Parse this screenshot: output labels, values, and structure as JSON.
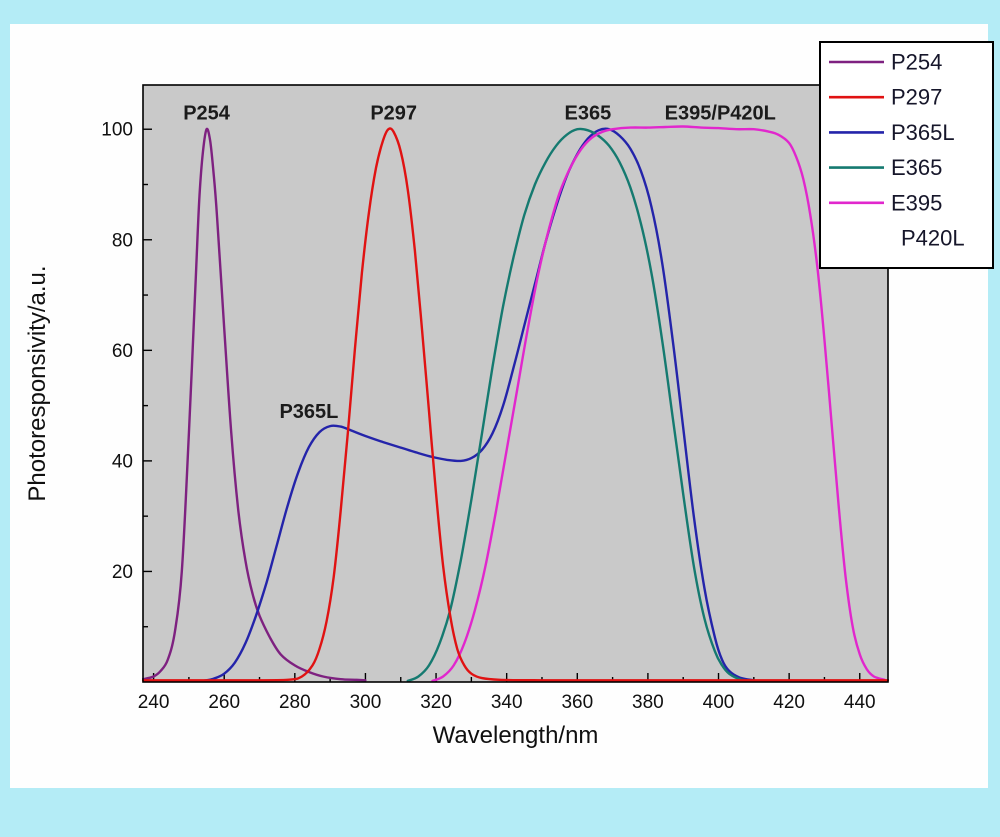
{
  "chart_data": {
    "type": "line",
    "title": "",
    "xlabel": "Wavelength/nm",
    "ylabel": "Photoresponsivity/a.u.",
    "x_range": [
      237,
      448
    ],
    "y_range": [
      0,
      108
    ],
    "x_ticks": [
      240,
      260,
      280,
      300,
      320,
      340,
      360,
      380,
      400,
      420,
      440
    ],
    "x_minor_ticks": [
      250,
      270,
      290,
      310,
      330,
      350,
      370,
      390,
      410,
      430
    ],
    "y_ticks": [
      20,
      40,
      60,
      80,
      100
    ],
    "y_minor_ticks": [
      10,
      30,
      50,
      70,
      90
    ],
    "grid": false,
    "plot_bg": "#c9c9c9",
    "frame_color": "#000000",
    "page_bg": "#b4ecf6",
    "panel_bg": "#fefefe",
    "series": [
      {
        "name": "P254",
        "color": "#7e2180",
        "points": [
          [
            237,
            0.5
          ],
          [
            240,
            1
          ],
          [
            242,
            2
          ],
          [
            244,
            4
          ],
          [
            246,
            9
          ],
          [
            248,
            20
          ],
          [
            250,
            45
          ],
          [
            252,
            74
          ],
          [
            253,
            88
          ],
          [
            254,
            96
          ],
          [
            255,
            100
          ],
          [
            256,
            98
          ],
          [
            257,
            92
          ],
          [
            258,
            84
          ],
          [
            260,
            64
          ],
          [
            262,
            45
          ],
          [
            264,
            31
          ],
          [
            266,
            22
          ],
          [
            268,
            16
          ],
          [
            270,
            12
          ],
          [
            273,
            8
          ],
          [
            276,
            5
          ],
          [
            280,
            3
          ],
          [
            284,
            1.8
          ],
          [
            288,
            1
          ],
          [
            293,
            0.5
          ],
          [
            297,
            0.4
          ],
          [
            300,
            0.3
          ]
        ]
      },
      {
        "name": "P297",
        "color": "#e01212",
        "points": [
          [
            237,
            0.3
          ],
          [
            252,
            0.3
          ],
          [
            266,
            0.3
          ],
          [
            278,
            0.4
          ],
          [
            282,
            1
          ],
          [
            285,
            3
          ],
          [
            287,
            6
          ],
          [
            289,
            11
          ],
          [
            291,
            19
          ],
          [
            293,
            31
          ],
          [
            295,
            45
          ],
          [
            297,
            60
          ],
          [
            299,
            74
          ],
          [
            301,
            85
          ],
          [
            303,
            93
          ],
          [
            305,
            98
          ],
          [
            306.5,
            100
          ],
          [
            308,
            99.5
          ],
          [
            310,
            96
          ],
          [
            312,
            89
          ],
          [
            314,
            78
          ],
          [
            316,
            64
          ],
          [
            318,
            49
          ],
          [
            320,
            34
          ],
          [
            322,
            21
          ],
          [
            324,
            12
          ],
          [
            326,
            6
          ],
          [
            328,
            3
          ],
          [
            330,
            1.5
          ],
          [
            333,
            0.7
          ],
          [
            338,
            0.4
          ],
          [
            350,
            0.3
          ],
          [
            370,
            0.3
          ],
          [
            390,
            0.3
          ],
          [
            410,
            0.3
          ],
          [
            430,
            0.3
          ],
          [
            448,
            0.3
          ]
        ]
      },
      {
        "name": "P365L",
        "color": "#2424aa",
        "points": [
          [
            254,
            0.2
          ],
          [
            257,
            0.6
          ],
          [
            260,
            1.5
          ],
          [
            263,
            3.5
          ],
          [
            266,
            7
          ],
          [
            269,
            12
          ],
          [
            272,
            18
          ],
          [
            275,
            25
          ],
          [
            278,
            32
          ],
          [
            281,
            38
          ],
          [
            284,
            42.5
          ],
          [
            287,
            45.2
          ],
          [
            290,
            46.3
          ],
          [
            293,
            46.2
          ],
          [
            296,
            45.5
          ],
          [
            300,
            44.5
          ],
          [
            305,
            43.4
          ],
          [
            310,
            42.4
          ],
          [
            315,
            41.4
          ],
          [
            319,
            40.7
          ],
          [
            323,
            40.2
          ],
          [
            327,
            40
          ],
          [
            330,
            40.5
          ],
          [
            333,
            42
          ],
          [
            336,
            45
          ],
          [
            339,
            50
          ],
          [
            342,
            57
          ],
          [
            345,
            64.5
          ],
          [
            348,
            72
          ],
          [
            351,
            79.5
          ],
          [
            354,
            86
          ],
          [
            357,
            91.5
          ],
          [
            360,
            95.5
          ],
          [
            363,
            98.3
          ],
          [
            366,
            99.8
          ],
          [
            369,
            100
          ],
          [
            372,
            98.8
          ],
          [
            375,
            96.5
          ],
          [
            378,
            92.5
          ],
          [
            381,
            86
          ],
          [
            384,
            76
          ],
          [
            387,
            62
          ],
          [
            390,
            46
          ],
          [
            393,
            30
          ],
          [
            396,
            17
          ],
          [
            399,
            8
          ],
          [
            401,
            4
          ],
          [
            403,
            2
          ],
          [
            406,
            0.8
          ],
          [
            410,
            0.3
          ]
        ]
      },
      {
        "name": "E365",
        "color": "#157a70",
        "points": [
          [
            312,
            0.2
          ],
          [
            315,
            1
          ],
          [
            318,
            3
          ],
          [
            321,
            7
          ],
          [
            324,
            13
          ],
          [
            327,
            22
          ],
          [
            330,
            33
          ],
          [
            333,
            45
          ],
          [
            336,
            57
          ],
          [
            339,
            68
          ],
          [
            342,
            77
          ],
          [
            345,
            84.5
          ],
          [
            348,
            90
          ],
          [
            351,
            94
          ],
          [
            354,
            97
          ],
          [
            357,
            99
          ],
          [
            360,
            100
          ],
          [
            363,
            99.8
          ],
          [
            366,
            98.8
          ],
          [
            369,
            97
          ],
          [
            372,
            94
          ],
          [
            375,
            89.5
          ],
          [
            378,
            83
          ],
          [
            381,
            74
          ],
          [
            384,
            62
          ],
          [
            387,
            48
          ],
          [
            390,
            34
          ],
          [
            393,
            21
          ],
          [
            396,
            11.5
          ],
          [
            399,
            5.5
          ],
          [
            401,
            3
          ],
          [
            403,
            1.5
          ],
          [
            406,
            0.5
          ],
          [
            409,
            0.2
          ]
        ]
      },
      {
        "name": "E395/P420L",
        "color": "#e127cd",
        "points": [
          [
            319,
            0.2
          ],
          [
            322,
            1
          ],
          [
            325,
            3
          ],
          [
            328,
            7
          ],
          [
            331,
            13
          ],
          [
            334,
            21
          ],
          [
            337,
            31
          ],
          [
            340,
            42
          ],
          [
            343,
            53
          ],
          [
            346,
            64
          ],
          [
            349,
            74
          ],
          [
            352,
            82
          ],
          [
            355,
            88.5
          ],
          [
            358,
            93
          ],
          [
            361,
            96.3
          ],
          [
            364,
            98.4
          ],
          [
            367,
            99.5
          ],
          [
            370,
            100
          ],
          [
            375,
            100.3
          ],
          [
            380,
            100.3
          ],
          [
            385,
            100.4
          ],
          [
            390,
            100.5
          ],
          [
            395,
            100.3
          ],
          [
            400,
            100.2
          ],
          [
            405,
            100
          ],
          [
            410,
            100
          ],
          [
            414,
            99.6
          ],
          [
            417,
            99
          ],
          [
            420,
            97.5
          ],
          [
            422,
            95
          ],
          [
            424,
            91
          ],
          [
            426,
            84.5
          ],
          [
            428,
            75
          ],
          [
            430,
            62
          ],
          [
            432,
            47
          ],
          [
            434,
            32
          ],
          [
            436,
            19
          ],
          [
            438,
            10
          ],
          [
            440,
            5
          ],
          [
            442,
            2.3
          ],
          [
            444,
            1
          ],
          [
            447,
            0.4
          ]
        ]
      }
    ],
    "peak_labels": [
      {
        "text": "P254",
        "x": 255,
        "y": 103
      },
      {
        "text": "P297",
        "x": 308,
        "y": 103
      },
      {
        "text": "P365L",
        "x": 284,
        "y": 49
      },
      {
        "text": "E365",
        "x": 363,
        "y": 103
      },
      {
        "text": "E395/P420L",
        "x": 400.5,
        "y": 103
      }
    ],
    "legend": {
      "border_color": "#000000",
      "bg_color": "#ffffff",
      "entries": [
        {
          "label": "P254",
          "color": "#7e2180"
        },
        {
          "label": "P297",
          "color": "#e01212"
        },
        {
          "label": "P365L",
          "color": "#2424aa"
        },
        {
          "label": "E365",
          "color": "#157a70"
        },
        {
          "label": "E395",
          "color": "#e127cd"
        },
        {
          "label": "P420L",
          "color": null
        }
      ]
    }
  }
}
